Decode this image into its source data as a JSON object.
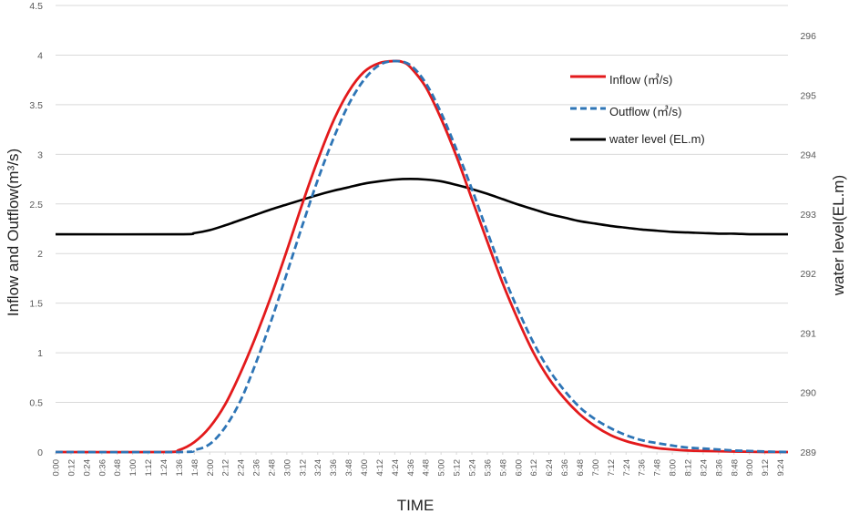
{
  "chart_data": {
    "type": "line",
    "xlabel": "TIME",
    "ylabel_left": "Inflow and Outflow(m³/s)",
    "ylabel_right": "water level(EL.m)",
    "ylim_left": [
      0,
      4.5
    ],
    "yticks_left": [
      "0",
      "0.5",
      "1",
      "1.5",
      "2",
      "2.5",
      "3",
      "3.5",
      "4",
      "4.5"
    ],
    "ylim_right": [
      289,
      296
    ],
    "yticks_right": [
      "289",
      "290",
      "291",
      "292",
      "293",
      "294",
      "295",
      "296"
    ],
    "x_ticks": [
      "0:00",
      "0:12",
      "0:24",
      "0:36",
      "0:48",
      "1:00",
      "1:12",
      "1:24",
      "1:36",
      "1:48",
      "2:00",
      "2:12",
      "2:24",
      "2:36",
      "2:48",
      "3:00",
      "3:12",
      "3:24",
      "3:36",
      "3:48",
      "4:00",
      "4:12",
      "4:24",
      "4:36",
      "4:48",
      "5:00",
      "5:12",
      "5:24",
      "5:36",
      "5:48",
      "6:00",
      "6:12",
      "6:24",
      "6:36",
      "6:48",
      "7:00",
      "7:12",
      "7:24",
      "7:36",
      "7:48",
      "8:00",
      "8:12",
      "8:24",
      "8:36",
      "8:48",
      "9:00",
      "9:12",
      "9:24"
    ],
    "grid": "horizontal",
    "legend_position": "top-right",
    "series": [
      {
        "name": "Inflow (㎥/s)",
        "axis": "left",
        "color": "#e31a1c",
        "style": "solid",
        "x": [
          "0:00",
          "1:24",
          "1:36",
          "1:48",
          "2:00",
          "2:12",
          "2:24",
          "2:36",
          "2:48",
          "3:00",
          "3:12",
          "3:24",
          "3:36",
          "3:48",
          "4:00",
          "4:12",
          "4:24",
          "4:30",
          "4:36",
          "4:48",
          "5:00",
          "5:12",
          "5:24",
          "5:36",
          "5:48",
          "6:00",
          "6:12",
          "6:24",
          "6:36",
          "6:48",
          "7:00",
          "7:12",
          "7:24",
          "7:36",
          "7:48",
          "8:00",
          "8:12",
          "8:24",
          "8:48",
          "9:12",
          "9:30"
        ],
        "values": [
          0,
          0,
          0.02,
          0.1,
          0.25,
          0.48,
          0.8,
          1.17,
          1.58,
          2.03,
          2.5,
          2.94,
          3.33,
          3.63,
          3.83,
          3.92,
          3.94,
          3.93,
          3.88,
          3.68,
          3.36,
          2.98,
          2.55,
          2.12,
          1.7,
          1.33,
          1.0,
          0.74,
          0.54,
          0.38,
          0.26,
          0.17,
          0.11,
          0.07,
          0.04,
          0.025,
          0.015,
          0.01,
          0.005,
          0,
          0
        ]
      },
      {
        "name": "Outflow (㎥/s)",
        "axis": "left",
        "color": "#2e75b6",
        "style": "dashed",
        "x": [
          "0:00",
          "1:36",
          "1:48",
          "2:00",
          "2:12",
          "2:24",
          "2:36",
          "2:48",
          "3:00",
          "3:12",
          "3:24",
          "3:36",
          "3:48",
          "4:00",
          "4:12",
          "4:24",
          "4:36",
          "4:48",
          "5:00",
          "5:12",
          "5:24",
          "5:36",
          "5:48",
          "6:00",
          "6:12",
          "6:24",
          "6:36",
          "6:48",
          "7:00",
          "7:12",
          "7:24",
          "7:36",
          "7:48",
          "8:00",
          "8:12",
          "8:24",
          "8:36",
          "8:48",
          "9:00",
          "9:12",
          "9:30"
        ],
        "values": [
          0,
          0,
          0.02,
          0.08,
          0.25,
          0.52,
          0.9,
          1.33,
          1.8,
          2.28,
          2.74,
          3.15,
          3.5,
          3.75,
          3.9,
          3.94,
          3.9,
          3.72,
          3.42,
          3.05,
          2.65,
          2.22,
          1.8,
          1.43,
          1.1,
          0.83,
          0.62,
          0.45,
          0.33,
          0.24,
          0.17,
          0.12,
          0.09,
          0.065,
          0.045,
          0.035,
          0.025,
          0.015,
          0.01,
          0.005,
          0
        ]
      },
      {
        "name": "water level (EL.m)",
        "axis": "right",
        "color": "#000000",
        "style": "solid",
        "x": [
          "0:00",
          "1:36",
          "1:48",
          "2:00",
          "2:12",
          "2:24",
          "2:36",
          "2:48",
          "3:00",
          "3:12",
          "3:24",
          "3:36",
          "3:48",
          "4:00",
          "4:12",
          "4:24",
          "4:36",
          "4:48",
          "5:00",
          "5:12",
          "5:24",
          "5:36",
          "5:48",
          "6:00",
          "6:12",
          "6:24",
          "6:36",
          "6:48",
          "7:00",
          "7:12",
          "7:24",
          "7:36",
          "7:48",
          "8:00",
          "8:12",
          "8:24",
          "8:36",
          "8:48",
          "9:00",
          "9:12",
          "9:30"
        ],
        "values": [
          292.66,
          292.66,
          292.68,
          292.73,
          292.81,
          292.9,
          292.99,
          293.08,
          293.16,
          293.24,
          293.32,
          293.39,
          293.45,
          293.51,
          293.55,
          293.58,
          293.59,
          293.58,
          293.55,
          293.49,
          293.42,
          293.34,
          293.25,
          293.16,
          293.08,
          293.0,
          292.94,
          292.88,
          292.84,
          292.8,
          292.77,
          292.74,
          292.72,
          292.7,
          292.69,
          292.68,
          292.67,
          292.67,
          292.66,
          292.66,
          292.66
        ]
      }
    ]
  }
}
